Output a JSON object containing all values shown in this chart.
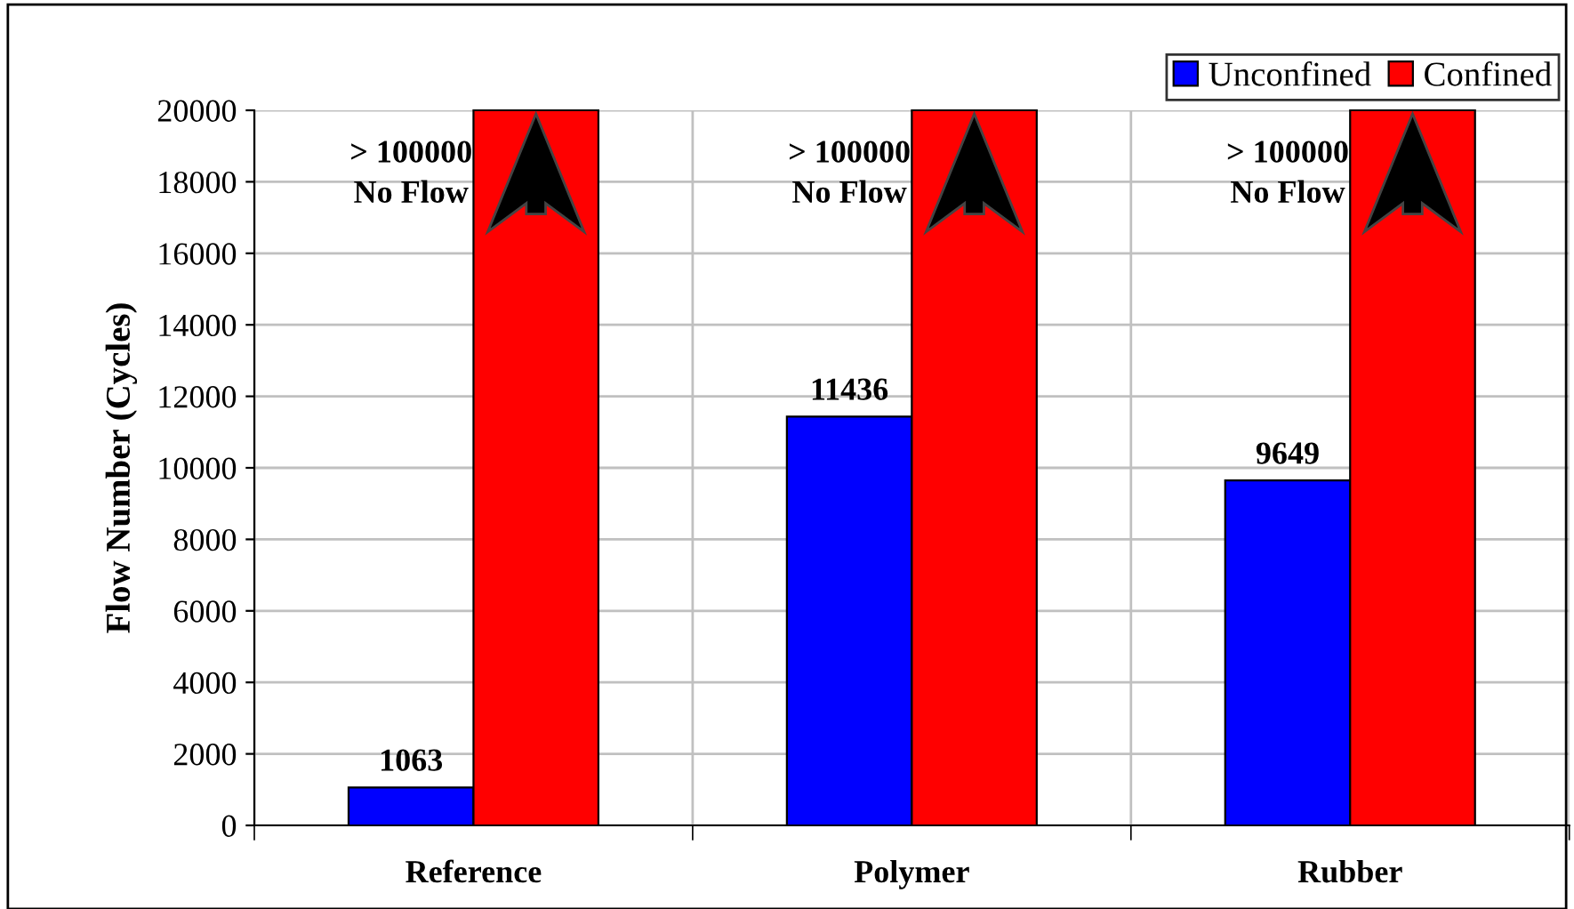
{
  "chart_data": {
    "type": "bar",
    "ylabel": "Flow Number (Cycles)",
    "categories": [
      "Reference",
      "Polymer",
      "Rubber"
    ],
    "series": [
      {
        "name": "Unconfined",
        "color": "#0000ff",
        "values": [
          1063,
          11436,
          9649
        ],
        "value_labels": [
          "1063",
          "11436",
          "9649"
        ]
      },
      {
        "name": "Confined",
        "color": "#ff0000",
        "values": [
          20000,
          20000,
          20000
        ]
      }
    ],
    "annotations": [
      {
        "text": "> 100000\nNo Flow",
        "x": "Reference",
        "y": 20000
      },
      {
        "text": "> 100000\nNo Flow",
        "x": "Polymer",
        "y": 20000
      },
      {
        "text": "> 100000\nNo Flow",
        "x": "Rubber",
        "y": 20000
      }
    ],
    "ylim": [
      0,
      20000
    ],
    "yticks": [
      0,
      2000,
      4000,
      6000,
      8000,
      10000,
      12000,
      14000,
      16000,
      18000,
      20000
    ],
    "grid": true,
    "legend": "top right"
  }
}
